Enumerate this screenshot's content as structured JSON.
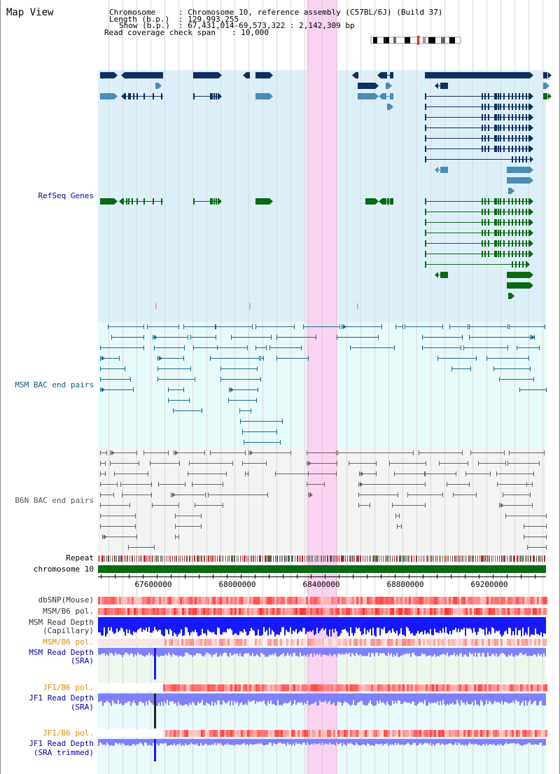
{
  "title": "Map View",
  "info": {
    "chromosome_key": "Chromosome",
    "chromosome_val": ": Chromosome 10, reference assembly (C57BL/6J) (Build 37)",
    "length_key": "Length (b.p.)",
    "length_val": ": 129,993,255",
    "show_key": "Show (b.p.)",
    "show_val": ": 67,431,014-69,573,322 : 2,142,309 bp",
    "span_key": "Read coverage check span",
    "span_val": ": 10,000"
  },
  "tracks": {
    "refseq": "RefSeq Genes",
    "msm_bac": "MSM BAC end pairs",
    "b6n_bac": "B6N BAC end pairs",
    "repeat": "Repeat",
    "chromosome": "chromosome 10",
    "dbsnp": "dbSNP(Mouse)",
    "msm_pol1": "MSM/B6 pol.",
    "msm_depth_cap_1": "MSM Read Depth",
    "msm_depth_cap_2": "(Capillary)",
    "msm_pol2": "MSM/B6 pol.",
    "msm_depth_sra_1": "MSM Read Depth",
    "msm_depth_sra_2": "(SRA)",
    "jf1_pol1": "JF1/B6 pol.",
    "jf1_depth_1": "JF1 Read Depth",
    "jf1_depth_2": "(SRA)",
    "jf1_pol2": "JF1/B6 pol.",
    "jf1_trim_1": "JF1 Read Depth",
    "jf1_trim_2": "(SRA trimmed)"
  },
  "axis": {
    "ticks": [
      "67600000",
      "68000000",
      "68400000",
      "68800000",
      "69200000"
    ]
  },
  "colors": {
    "refseq_bg": "#ddf0fa",
    "bac_bg": "#e8fbfb",
    "b6n_bg": "#f4f4f4",
    "highlight": "#f8d4f0",
    "gene_dark": "#0d3060",
    "gene_mid": "#4a8cb8",
    "gene_green": "#0a6a14",
    "label_blue": "#0000aa",
    "label_teal": "#0a5a80",
    "label_orange": "#e08a00"
  }
}
